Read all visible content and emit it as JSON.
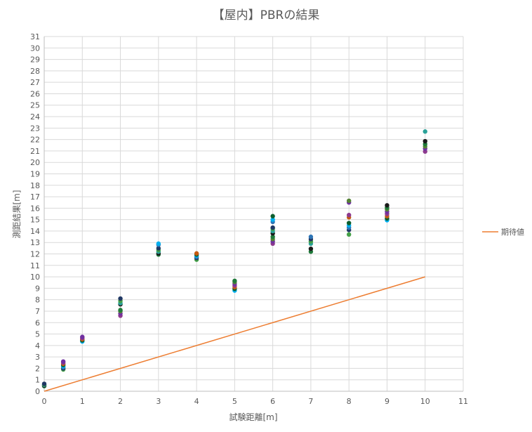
{
  "chart_data": {
    "type": "scatter",
    "title": "【屋内】PBRの結果",
    "xlabel": "試験距離[m]",
    "ylabel": "測距結果[m]",
    "xlim": [
      0,
      11
    ],
    "ylim": [
      0,
      31
    ],
    "x_ticks": [
      0,
      1,
      2,
      3,
      4,
      5,
      6,
      7,
      8,
      9,
      10,
      11
    ],
    "y_ticks": [
      0,
      1,
      2,
      3,
      4,
      5,
      6,
      7,
      8,
      9,
      10,
      11,
      12,
      13,
      14,
      15,
      16,
      17,
      18,
      19,
      20,
      21,
      22,
      23,
      24,
      25,
      26,
      27,
      28,
      29,
      30,
      31
    ],
    "grid": true,
    "legend_position": "right",
    "colors": {
      "grid": "#d9d9d9",
      "axis": "#bfbfbf",
      "expected_line": "#ed7d31",
      "points": [
        "#1f7a3a",
        "#2e75b6",
        "#7030a0",
        "#43a047",
        "#c55a11",
        "#1a1a1a",
        "#00b0f0",
        "#548235",
        "#203864",
        "#8e3a8e",
        "#2aa198",
        "#0e5e2e"
      ]
    },
    "measured": [
      {
        "x": 0,
        "y": [
          0.45,
          0.5,
          0.55,
          0.6,
          0.65
        ]
      },
      {
        "x": 0.5,
        "y": [
          1.9,
          2.0,
          2.1,
          2.2,
          2.3,
          2.4,
          2.5,
          2.6
        ]
      },
      {
        "x": 1,
        "y": [
          4.35,
          4.45,
          4.55,
          4.65,
          4.75
        ]
      },
      {
        "x": 2,
        "y": [
          6.6,
          6.8,
          7.0,
          7.1,
          7.6,
          7.7,
          7.9,
          8.1
        ]
      },
      {
        "x": 3,
        "y": [
          11.95,
          12.05,
          12.2,
          12.35,
          12.5,
          12.8,
          12.9
        ]
      },
      {
        "x": 4,
        "y": [
          11.5,
          11.65,
          11.75,
          11.85,
          11.95,
          12.05
        ]
      },
      {
        "x": 5,
        "y": [
          8.8,
          8.95,
          9.1,
          9.25,
          9.4,
          9.55,
          9.65
        ]
      },
      {
        "x": 6,
        "y": [
          12.9,
          13.1,
          13.3,
          13.5,
          13.8,
          14.0,
          14.2,
          14.3,
          14.8,
          15.0,
          15.3
        ]
      },
      {
        "x": 7,
        "y": [
          12.2,
          12.45,
          12.9,
          13.1,
          13.3,
          13.5
        ]
      },
      {
        "x": 8,
        "y": [
          13.7,
          14.1,
          14.3,
          14.5,
          14.7,
          15.2,
          15.4,
          16.5,
          16.65
        ]
      },
      {
        "x": 9,
        "y": [
          14.95,
          15.1,
          15.3,
          15.5,
          15.7,
          15.9,
          16.05,
          16.25
        ]
      },
      {
        "x": 10,
        "y": [
          20.95,
          21.2,
          21.4,
          21.6,
          21.85,
          22.7
        ]
      }
    ],
    "series": [
      {
        "name": "期待値",
        "type": "line",
        "x": [
          0,
          10
        ],
        "y": [
          0,
          10
        ]
      }
    ]
  }
}
